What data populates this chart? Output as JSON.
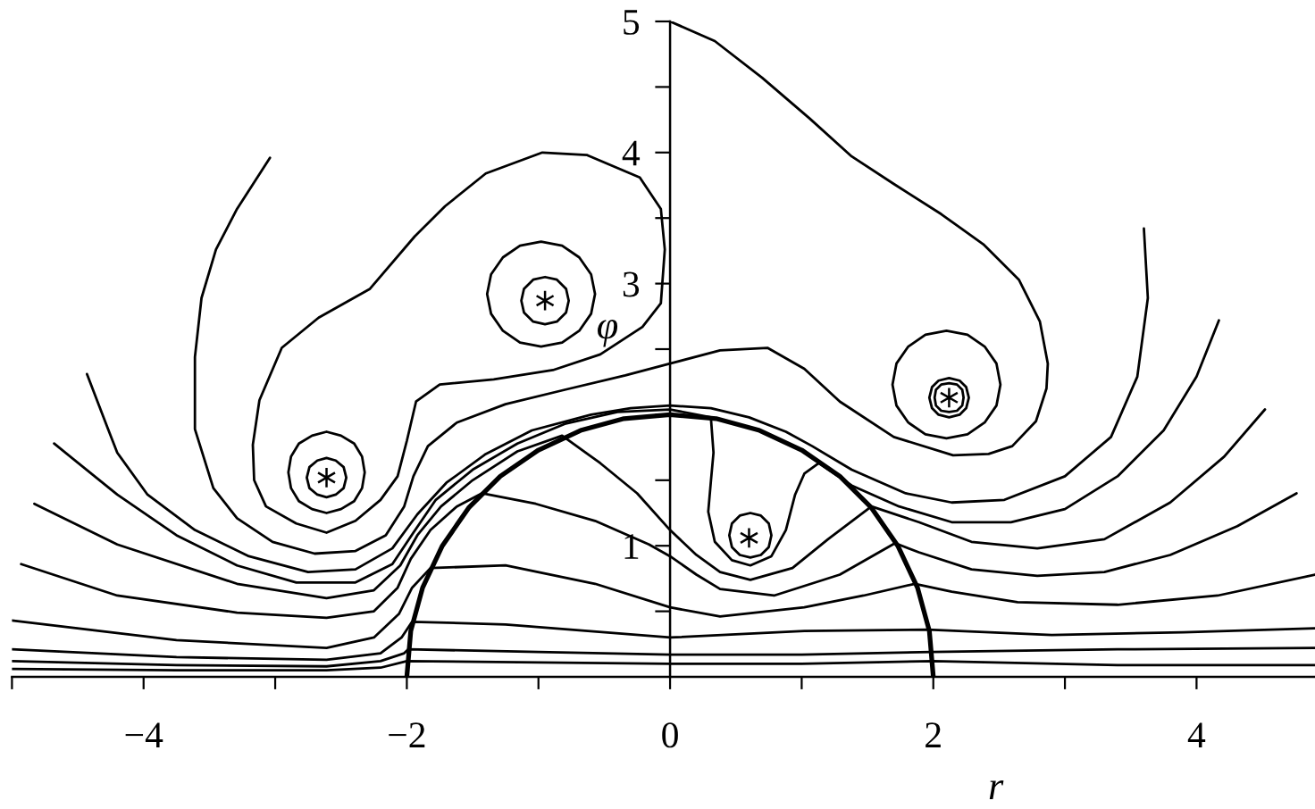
{
  "chart_data": {
    "type": "line",
    "xlabel": "r",
    "ylabel": "φ",
    "xlim": [
      -5,
      4.9
    ],
    "ylim": [
      0,
      5
    ],
    "xticks": [
      {
        "value": -5,
        "label": null
      },
      {
        "value": -4,
        "label": "−4"
      },
      {
        "value": -3,
        "label": null
      },
      {
        "value": -2,
        "label": "−2"
      },
      {
        "value": -1,
        "label": null
      },
      0,
      {
        "value": 1,
        "label": null
      },
      2,
      {
        "value": 3,
        "label": null
      },
      4
    ],
    "yticks": [
      {
        "value": 0.5,
        "label": null
      },
      1,
      {
        "value": 1.5,
        "label": null
      },
      {
        "value": 2,
        "label": null
      },
      {
        "value": 2.5,
        "label": null
      },
      3,
      {
        "value": 3.5,
        "label": null
      },
      4,
      {
        "value": 4.5,
        "label": null
      },
      5
    ],
    "series": [
      {
        "color": "#000000",
        "x": [
          -2,
          -1.97,
          -1.88,
          -1.73,
          -1.53,
          -1.29,
          -1.0,
          -0.68,
          -0.35,
          0,
          0.35,
          0.68,
          1.0,
          1.29,
          1.53,
          1.73,
          1.88,
          1.97,
          2
        ],
        "values": [
          0,
          0.35,
          0.68,
          1.0,
          1.29,
          1.53,
          1.73,
          1.88,
          1.97,
          2,
          1.97,
          1.88,
          1.73,
          1.53,
          1.29,
          1.0,
          0.68,
          0.35,
          0
        ]
      },
      {
        "color": "#000000",
        "x": [
          -3.04,
          -3.29,
          -3.45,
          -3.56,
          -3.61,
          -3.61,
          -3.47,
          -3.29,
          -3.02,
          -2.7,
          -2.39,
          -2.16,
          -2.02,
          -1.95,
          -1.84,
          -1.62,
          -1.25,
          -0.8,
          -0.34,
          0,
          0.38,
          0.74,
          1.02,
          1.29,
          1.7,
          2.15,
          2.42,
          2.6,
          2.78,
          2.86,
          2.87,
          2.81,
          2.65,
          2.38,
          2.06,
          1.7,
          1.38,
          1.06,
          0.7,
          0.34,
          0
        ],
        "values": [
          3.96,
          3.57,
          3.26,
          2.89,
          2.44,
          1.89,
          1.44,
          1.21,
          1.03,
          0.94,
          0.96,
          1.08,
          1.3,
          1.53,
          1.76,
          1.94,
          2.08,
          2.19,
          2.3,
          2.39,
          2.49,
          2.51,
          2.35,
          2.1,
          1.83,
          1.69,
          1.7,
          1.76,
          1.95,
          2.2,
          2.39,
          2.71,
          3.03,
          3.3,
          3.53,
          3.76,
          3.97,
          4.26,
          4.57,
          4.85,
          5.0
        ]
      },
      {
        "color": "#000000",
        "x": [
          -4.43,
          -4.27,
          -4.2,
          -3.97,
          -3.61,
          -3.2,
          -2.75,
          -2.39,
          -2.11,
          -1.92,
          -1.7,
          -1.4,
          -1.05,
          -0.6,
          -0.3,
          0,
          0.31,
          0.6,
          0.88,
          1.08,
          1.38,
          1.79,
          2.14,
          2.54,
          3.0,
          3.35,
          3.55,
          3.63,
          3.6
        ],
        "values": [
          2.31,
          1.89,
          1.71,
          1.39,
          1.12,
          0.92,
          0.8,
          0.82,
          0.98,
          1.24,
          1.48,
          1.7,
          1.88,
          2.0,
          2.05,
          2.07,
          2.05,
          1.98,
          1.87,
          1.76,
          1.58,
          1.4,
          1.33,
          1.35,
          1.53,
          1.83,
          2.29,
          2.89,
          3.42
        ]
      },
      {
        "color": "#000000",
        "x": [
          -4.68,
          -4.2,
          -3.75,
          -3.29,
          -2.84,
          -2.39,
          -2.11,
          -1.95,
          -1.78,
          -1.5,
          -1.16,
          -0.8,
          -0.4,
          0,
          0.31,
          0.33,
          0.31,
          0.29,
          0.34,
          0.47,
          0.61,
          0.77,
          0.88,
          0.95,
          1.02,
          1.13,
          1.38,
          1.74,
          2.14,
          2.59,
          3.0,
          3.4,
          3.75,
          4.0,
          4.17
        ],
        "values": [
          1.78,
          1.39,
          1.08,
          0.85,
          0.72,
          0.72,
          0.86,
          1.1,
          1.35,
          1.58,
          1.78,
          1.93,
          2.02,
          2.04,
          1.98,
          1.71,
          1.49,
          1.26,
          1.03,
          0.89,
          0.85,
          0.92,
          1.12,
          1.39,
          1.55,
          1.63,
          1.46,
          1.3,
          1.18,
          1.18,
          1.28,
          1.53,
          1.88,
          2.29,
          2.72
        ]
      },
      {
        "color": "#000000",
        "x": [
          -4.83,
          -4.2,
          -3.29,
          -2.61,
          -2.25,
          -2.05,
          -1.92,
          -1.74,
          -1.5,
          -1.16,
          -0.82,
          -0.53,
          -0.25,
          0,
          0.2,
          0.38,
          0.61,
          0.93,
          1.2,
          1.53,
          1.89,
          2.29,
          2.79,
          3.3,
          3.8,
          4.21,
          4.52
        ],
        "values": [
          1.32,
          1.01,
          0.71,
          0.6,
          0.66,
          0.85,
          1.08,
          1.3,
          1.5,
          1.72,
          1.84,
          1.63,
          1.4,
          1.12,
          0.93,
          0.8,
          0.74,
          0.83,
          1.05,
          1.3,
          1.18,
          1.03,
          0.98,
          1.05,
          1.33,
          1.68,
          2.04
        ]
      },
      {
        "color": "#000000",
        "x": [
          -4.93,
          -4.2,
          -3.29,
          -2.61,
          -2.25,
          -2.07,
          -1.97,
          -1.82,
          -1.62,
          -1.43,
          -1.02,
          -0.57,
          -0.16,
          0,
          0.2,
          0.38,
          0.79,
          1.29,
          1.71,
          1.89,
          2.29,
          2.79,
          3.3,
          3.8,
          4.31,
          4.76
        ],
        "values": [
          0.86,
          0.62,
          0.49,
          0.45,
          0.5,
          0.68,
          0.9,
          1.12,
          1.3,
          1.4,
          1.32,
          1.19,
          1.01,
          0.92,
          0.78,
          0.67,
          0.62,
          0.78,
          1.02,
          0.95,
          0.82,
          0.77,
          0.8,
          0.93,
          1.15,
          1.4
        ]
      },
      {
        "color": "#000000",
        "x": [
          -5,
          -3.75,
          -2.61,
          -2.25,
          -2.06,
          -1.96,
          -1.82,
          -1.25,
          -0.57,
          0,
          0.38,
          1.02,
          1.47,
          1.86,
          2.14,
          2.64,
          3.4,
          4.16,
          4.9
        ],
        "values": [
          0.43,
          0.28,
          0.22,
          0.3,
          0.48,
          0.68,
          0.83,
          0.85,
          0.71,
          0.53,
          0.46,
          0.53,
          0.62,
          0.71,
          0.65,
          0.57,
          0.55,
          0.62,
          0.78
        ]
      },
      {
        "color": "#000000",
        "x": [
          -5,
          -3.75,
          -2.61,
          -2.2,
          -2.04,
          -1.96,
          -1.25,
          0,
          1.02,
          1.96,
          2.9,
          3.9,
          4.9
        ],
        "values": [
          0.21,
          0.15,
          0.13,
          0.18,
          0.3,
          0.42,
          0.4,
          0.3,
          0.35,
          0.36,
          0.32,
          0.34,
          0.37
        ]
      },
      {
        "color": "#000000",
        "x": [
          -5,
          -3.75,
          -2.61,
          -2.2,
          -2.02,
          -1.99,
          -1.0,
          0,
          1.0,
          1.99,
          3.4,
          4.9
        ],
        "values": [
          0.12,
          0.09,
          0.08,
          0.12,
          0.18,
          0.21,
          0.19,
          0.17,
          0.17,
          0.19,
          0.21,
          0.22
        ]
      },
      {
        "color": "#000000",
        "x": [
          -5,
          -3.75,
          -2.61,
          -2.2,
          -2.0,
          0,
          1.0,
          2.0,
          3.4,
          4.9
        ],
        "values": [
          0.06,
          0.05,
          0.05,
          0.07,
          0.12,
          0.1,
          0.1,
          0.12,
          0.09,
          0.09
        ]
      },
      {
        "color": "#000000",
        "x": [
          -0.97,
          -0.63,
          -0.23,
          -0.07,
          -0.04,
          -0.07,
          -0.21,
          -0.53,
          -0.89,
          -1.34,
          -1.75,
          -1.93,
          -2.0,
          -2.07,
          -2.2,
          -2.39,
          -2.61,
          -2.84,
          -3.07,
          -3.16,
          -3.17,
          -3.12,
          -2.95,
          -2.67,
          -2.28,
          -1.94,
          -1.71,
          -1.4,
          -0.97,
          -0.63
        ],
        "values": [
          4.0,
          3.98,
          3.81,
          3.57,
          3.26,
          2.85,
          2.67,
          2.46,
          2.34,
          2.27,
          2.23,
          2.1,
          1.8,
          1.53,
          1.35,
          1.19,
          1.1,
          1.17,
          1.3,
          1.5,
          1.77,
          2.11,
          2.51,
          2.74,
          2.96,
          3.36,
          3.59,
          3.84,
          4.0,
          3.98
        ]
      },
      {
        "color": "#000000",
        "x": [
          -0.57,
          -0.6,
          -0.69,
          -0.82,
          -0.98,
          -1.14,
          -1.27,
          -1.36,
          -1.39,
          -1.36,
          -1.27,
          -1.14,
          -0.98,
          -0.82,
          -0.69,
          -0.6,
          -0.57,
          -0.6
        ],
        "values": [
          2.92,
          3.07,
          3.2,
          3.29,
          3.32,
          3.29,
          3.2,
          3.07,
          2.92,
          2.77,
          2.64,
          2.55,
          2.52,
          2.55,
          2.64,
          2.77,
          2.92,
          3.07
        ]
      },
      {
        "color": "#000000",
        "x": [
          -0.77,
          -0.79,
          -0.86,
          -0.95,
          -1.04,
          -1.11,
          -1.13,
          -1.11,
          -1.04,
          -0.95,
          -0.86,
          -0.79,
          -0.77,
          -0.79
        ],
        "values": [
          2.87,
          2.96,
          3.03,
          3.05,
          3.03,
          2.96,
          2.87,
          2.78,
          2.71,
          2.69,
          2.71,
          2.78,
          2.87,
          2.96
        ]
      },
      {
        "color": "#000000",
        "x": [
          -2.32,
          -2.34,
          -2.4,
          -2.5,
          -2.61,
          -2.72,
          -2.82,
          -2.88,
          -2.9,
          -2.88,
          -2.82,
          -2.72,
          -2.61,
          -2.5,
          -2.4,
          -2.34,
          -2.32,
          -2.34
        ],
        "values": [
          1.56,
          1.68,
          1.78,
          1.84,
          1.87,
          1.84,
          1.78,
          1.68,
          1.56,
          1.44,
          1.34,
          1.28,
          1.25,
          1.28,
          1.34,
          1.44,
          1.56,
          1.68
        ]
      },
      {
        "color": "#000000",
        "x": [
          -2.46,
          -2.48,
          -2.54,
          -2.61,
          -2.68,
          -2.74,
          -2.76,
          -2.74,
          -2.68,
          -2.61,
          -2.54,
          -2.48,
          -2.46,
          -2.48
        ],
        "values": [
          1.52,
          1.6,
          1.65,
          1.67,
          1.65,
          1.6,
          1.52,
          1.44,
          1.39,
          1.37,
          1.39,
          1.44,
          1.52,
          1.6
        ]
      },
      {
        "color": "#000000",
        "x": [
          2.51,
          2.48,
          2.39,
          2.26,
          2.1,
          1.94,
          1.81,
          1.72,
          1.69,
          1.72,
          1.81,
          1.94,
          2.1,
          2.26,
          2.39,
          2.48,
          2.51,
          2.48
        ],
        "values": [
          2.23,
          2.39,
          2.52,
          2.61,
          2.64,
          2.61,
          2.52,
          2.39,
          2.23,
          2.07,
          1.94,
          1.85,
          1.82,
          1.85,
          1.94,
          2.07,
          2.23,
          2.39
        ]
      },
      {
        "color": "#000000",
        "x": [
          2.27,
          2.25,
          2.2,
          2.12,
          2.04,
          1.99,
          1.97,
          1.99,
          2.04,
          2.12,
          2.2,
          2.25,
          2.27,
          2.25
        ],
        "values": [
          2.13,
          2.21,
          2.26,
          2.28,
          2.26,
          2.21,
          2.13,
          2.05,
          2.0,
          1.98,
          2.0,
          2.05,
          2.13,
          2.21
        ]
      },
      {
        "color": "#000000",
        "x": [
          2.23,
          2.22,
          2.18,
          2.12,
          2.06,
          2.02,
          2.01,
          2.02,
          2.06,
          2.12,
          2.18,
          2.22,
          2.23,
          2.22
        ],
        "values": [
          2.13,
          2.19,
          2.23,
          2.24,
          2.23,
          2.19,
          2.13,
          2.07,
          2.03,
          2.02,
          2.03,
          2.07,
          2.13,
          2.19
        ]
      },
      {
        "color": "#000000",
        "x": [
          0.77,
          0.75,
          0.69,
          0.61,
          0.53,
          0.47,
          0.45,
          0.47,
          0.53,
          0.61,
          0.69,
          0.75,
          0.77,
          0.75
        ],
        "values": [
          1.08,
          1.17,
          1.23,
          1.25,
          1.23,
          1.17,
          1.08,
          0.99,
          0.93,
          0.91,
          0.93,
          0.99,
          1.08,
          1.17
        ]
      },
      {
        "type": "scatter",
        "marker": "cross",
        "color": "#000000",
        "x": [
          -0.95,
          -2.61,
          0.6,
          2.12
        ],
        "values": [
          2.87,
          1.52,
          1.06,
          2.13
        ]
      }
    ]
  }
}
